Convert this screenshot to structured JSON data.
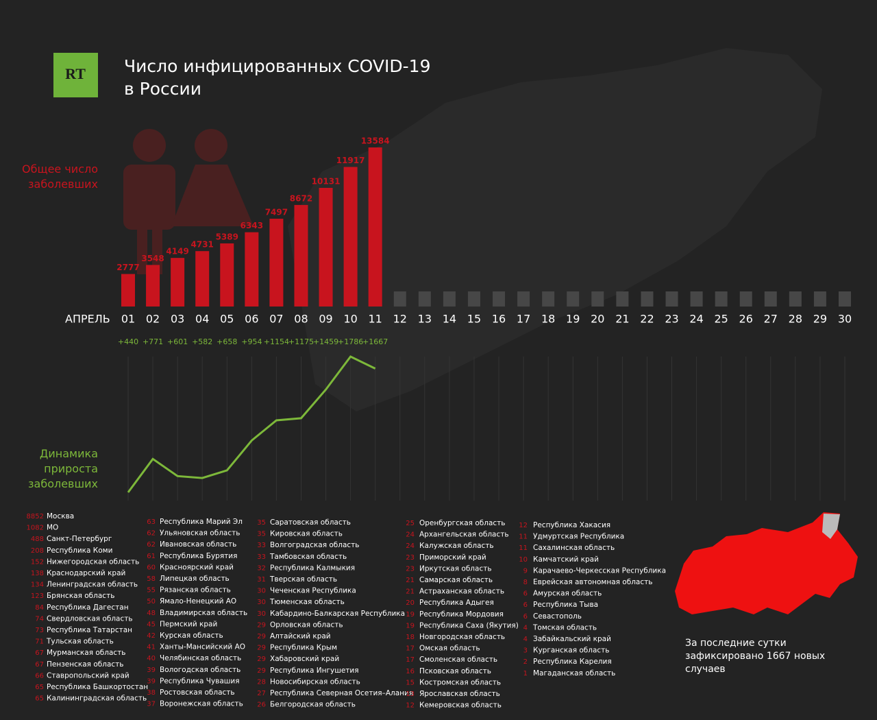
{
  "header": {
    "logo": "RT",
    "title": "Число инфицированных COVID-19",
    "subtitle": "в России"
  },
  "chart_data": [
    {
      "type": "bar",
      "label": "Общее число заболевших",
      "axis_label": "АПРЕЛЬ",
      "color": "#c8141e",
      "categories": [
        "01",
        "02",
        "03",
        "04",
        "05",
        "06",
        "07",
        "08",
        "09",
        "10",
        "11",
        "12",
        "13",
        "14",
        "15",
        "16",
        "17",
        "18",
        "19",
        "20",
        "21",
        "22",
        "23",
        "24",
        "25",
        "26",
        "27",
        "28",
        "29",
        "30"
      ],
      "values": [
        2777,
        3548,
        4149,
        4731,
        5389,
        6343,
        7497,
        8672,
        10131,
        11917,
        13584,
        null,
        null,
        null,
        null,
        null,
        null,
        null,
        null,
        null,
        null,
        null,
        null,
        null,
        null,
        null,
        null,
        null,
        null,
        null
      ]
    },
    {
      "type": "line",
      "label": "Динамика прироста заболевших",
      "color": "#7db83a",
      "values": [
        440,
        771,
        601,
        582,
        658,
        954,
        1154,
        1175,
        1459,
        1786,
        1667
      ],
      "value_labels": [
        "+440",
        "+771",
        "+601",
        "+582",
        "+658",
        "+954",
        "+1154",
        "+1175",
        "+1459",
        "+1786",
        "+1667"
      ]
    }
  ],
  "regions": [
    [
      {
        "count": 8852,
        "name": "Москва"
      },
      {
        "count": 1082,
        "name": "МО"
      },
      {
        "count": 488,
        "name": "Санкт-Петербург"
      },
      {
        "count": 208,
        "name": "Республика Коми"
      },
      {
        "count": 152,
        "name": "Нижегородская область"
      },
      {
        "count": 138,
        "name": "Краснодарский край"
      },
      {
        "count": 134,
        "name": "Ленинградская область"
      },
      {
        "count": 123,
        "name": "Брянская область"
      },
      {
        "count": 84,
        "name": "Республика Дагестан"
      },
      {
        "count": 74,
        "name": "Свердловская область"
      },
      {
        "count": 73,
        "name": "Республика Татарстан"
      },
      {
        "count": 71,
        "name": "Тульская область"
      },
      {
        "count": 67,
        "name": "Мурманская область"
      },
      {
        "count": 67,
        "name": "Пензенская область"
      },
      {
        "count": 66,
        "name": "Ставропольский край"
      },
      {
        "count": 65,
        "name": "Республика Башкортостан"
      },
      {
        "count": 65,
        "name": "Калининградская область"
      }
    ],
    [
      {
        "count": 63,
        "name": "Республика Марий Эл"
      },
      {
        "count": 62,
        "name": "Ульяновская область"
      },
      {
        "count": 62,
        "name": "Ивановская область"
      },
      {
        "count": 61,
        "name": "Республика Бурятия"
      },
      {
        "count": 60,
        "name": "Красноярский край"
      },
      {
        "count": 58,
        "name": "Липецкая область"
      },
      {
        "count": 55,
        "name": "Рязанская область"
      },
      {
        "count": 50,
        "name": "Ямало-Ненецкий АО"
      },
      {
        "count": 48,
        "name": "Владимирская область"
      },
      {
        "count": 45,
        "name": "Пермский край"
      },
      {
        "count": 42,
        "name": "Курская область"
      },
      {
        "count": 41,
        "name": "Ханты-Мансийский АО"
      },
      {
        "count": 40,
        "name": "Челябинская область"
      },
      {
        "count": 39,
        "name": "Вологодская область"
      },
      {
        "count": 39,
        "name": "Республика Чувашия"
      },
      {
        "count": 38,
        "name": "Ростовская область"
      },
      {
        "count": 37,
        "name": "Воронежская область"
      }
    ],
    [
      {
        "count": 35,
        "name": "Саратовская область"
      },
      {
        "count": 35,
        "name": "Кировская область"
      },
      {
        "count": 33,
        "name": "Волгоградская область"
      },
      {
        "count": 33,
        "name": "Тамбовская область"
      },
      {
        "count": 32,
        "name": "Республика Калмыкия"
      },
      {
        "count": 31,
        "name": "Тверская область"
      },
      {
        "count": 30,
        "name": "Чеченская Республика"
      },
      {
        "count": 30,
        "name": "Тюменская область"
      },
      {
        "count": 30,
        "name": "Кабардино-Балкарская Республика"
      },
      {
        "count": 29,
        "name": "Орловская область"
      },
      {
        "count": 29,
        "name": "Алтайский край"
      },
      {
        "count": 29,
        "name": "Республика Крым"
      },
      {
        "count": 29,
        "name": "Хабаровский край"
      },
      {
        "count": 29,
        "name": "Республика Ингушетия"
      },
      {
        "count": 28,
        "name": "Новосибирская область"
      },
      {
        "count": 27,
        "name": "Республика Северная Осетия–Алания"
      },
      {
        "count": 26,
        "name": "Белгородская область"
      }
    ],
    [
      {
        "count": 25,
        "name": "Оренбургская область"
      },
      {
        "count": 24,
        "name": "Архангельская область"
      },
      {
        "count": 24,
        "name": "Калужская область"
      },
      {
        "count": 23,
        "name": "Приморский край"
      },
      {
        "count": 23,
        "name": "Иркутская область"
      },
      {
        "count": 21,
        "name": "Самарская область"
      },
      {
        "count": 21,
        "name": "Астраханская область"
      },
      {
        "count": 20,
        "name": "Республика Адыгея"
      },
      {
        "count": 19,
        "name": "Республика Мордовия"
      },
      {
        "count": 19,
        "name": "Республика Саха (Якутия)"
      },
      {
        "count": 18,
        "name": "Новгородская область"
      },
      {
        "count": 17,
        "name": "Омская область"
      },
      {
        "count": 17,
        "name": "Смоленская область"
      },
      {
        "count": 16,
        "name": "Псковская область"
      },
      {
        "count": 15,
        "name": "Костромская область"
      },
      {
        "count": 13,
        "name": "Ярославская область"
      },
      {
        "count": 12,
        "name": "Кемеровская область"
      }
    ],
    [
      {
        "count": 12,
        "name": "Республика Хакасия"
      },
      {
        "count": 11,
        "name": "Удмуртская Республика"
      },
      {
        "count": 11,
        "name": "Сахалинская область"
      },
      {
        "count": 10,
        "name": "Камчатский край"
      },
      {
        "count": 9,
        "name": "Карачаево-Черкесская Республика"
      },
      {
        "count": 8,
        "name": "Еврейская автономная область"
      },
      {
        "count": 6,
        "name": "Амурская область"
      },
      {
        "count": 6,
        "name": "Республика Тыва"
      },
      {
        "count": 6,
        "name": "Севастополь"
      },
      {
        "count": 4,
        "name": "Томская область"
      },
      {
        "count": 4,
        "name": "Забайкальский край"
      },
      {
        "count": 3,
        "name": "Курганская область"
      },
      {
        "count": 2,
        "name": "Республика Карелия"
      },
      {
        "count": 1,
        "name": "Магаданская область"
      }
    ]
  ],
  "note": "За последние сутки зафиксировано 1667 новых случаев"
}
